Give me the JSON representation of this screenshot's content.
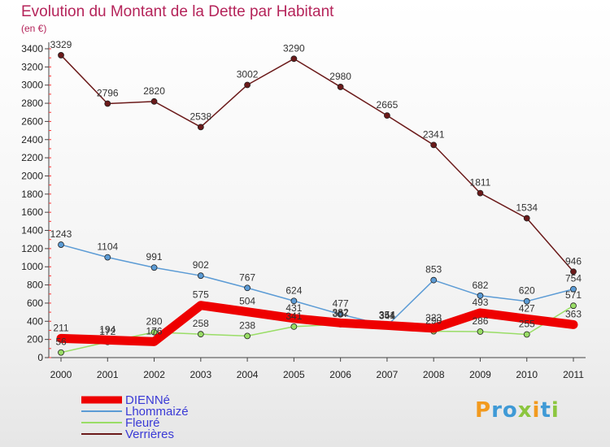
{
  "title": "Evolution du Montant de la Dette par Habitant",
  "unit": "(en €)",
  "logo": "Proxiti",
  "chart_data": {
    "type": "line",
    "title": "Evolution du Montant de la Dette par Habitant",
    "ylabel": "(en €)",
    "xlabel": "",
    "ylim": [
      0,
      3400
    ],
    "yticks": [
      0,
      200,
      400,
      600,
      800,
      1000,
      1200,
      1400,
      1600,
      1800,
      2000,
      2200,
      2400,
      2600,
      2800,
      3000,
      3200,
      3400
    ],
    "x": [
      "2000",
      "2001",
      "2002",
      "2003",
      "2004",
      "2005",
      "2006",
      "2007",
      "2008",
      "2009",
      "2010",
      "2011"
    ],
    "grid": false,
    "legend_position": "bottom-left",
    "series": [
      {
        "name": "DIENNé",
        "color": "#ee0000",
        "values": [
          211,
          194,
          176,
          575,
          504,
          431,
          382,
          354,
          323,
          493,
          427,
          363
        ]
      },
      {
        "name": "Lhommaizé",
        "color": "#5b9bd5",
        "values": [
          1243,
          1104,
          991,
          902,
          767,
          624,
          477,
          351,
          853,
          682,
          620,
          754
        ]
      },
      {
        "name": "Fleuré",
        "color": "#99dd66",
        "values": [
          56,
          172,
          280,
          258,
          238,
          341,
          367,
          344,
          290,
          286,
          255,
          571
        ]
      },
      {
        "name": "Verrières",
        "color": "#6b1a1a",
        "values": [
          3329,
          2796,
          2820,
          2538,
          3002,
          3290,
          2980,
          2665,
          2341,
          1811,
          1534,
          946
        ]
      }
    ]
  }
}
